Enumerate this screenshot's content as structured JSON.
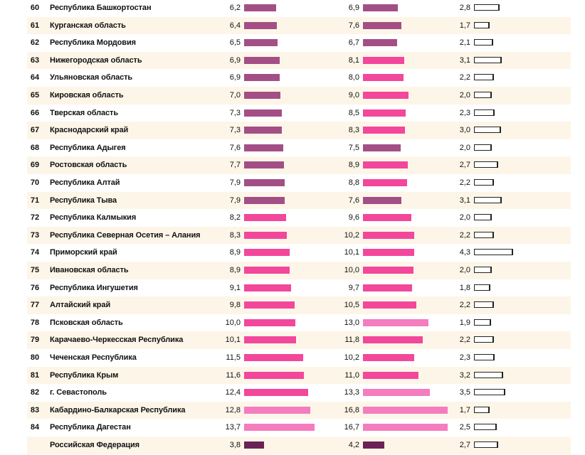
{
  "colors": {
    "stripe": "#fdf6e8",
    "low": "#a34f86",
    "mid": "#f2479b",
    "high": "#f47cbf",
    "total": "#6b2256"
  },
  "chart_data": {
    "type": "table",
    "columns": [
      "",
      "",
      "",
      "",
      ""
    ],
    "rows": [
      {
        "rank": "60",
        "region": "Республика Башкортостан",
        "v1": "6,2",
        "v2": "6,9",
        "v3": "2,8"
      },
      {
        "rank": "61",
        "region": "Курганская область",
        "v1": "6,4",
        "v2": "7,6",
        "v3": "1,7"
      },
      {
        "rank": "62",
        "region": "Республика Мордовия",
        "v1": "6,5",
        "v2": "6,7",
        "v3": "2,1"
      },
      {
        "rank": "63",
        "region": "Нижегородская область",
        "v1": "6,9",
        "v2": "8,1",
        "v3": "3,1"
      },
      {
        "rank": "64",
        "region": "Ульяновская область",
        "v1": "6,9",
        "v2": "8,0",
        "v3": "2,2"
      },
      {
        "rank": "65",
        "region": "Кировская область",
        "v1": "7,0",
        "v2": "9,0",
        "v3": "2,0"
      },
      {
        "rank": "66",
        "region": "Тверская область",
        "v1": "7,3",
        "v2": "8,5",
        "v3": "2,3"
      },
      {
        "rank": "67",
        "region": "Краснодарский край",
        "v1": "7,3",
        "v2": "8,3",
        "v3": "3,0"
      },
      {
        "rank": "68",
        "region": "Республика Адыгея",
        "v1": "7,6",
        "v2": "7,5",
        "v3": "2,0"
      },
      {
        "rank": "69",
        "region": "Ростовская область",
        "v1": "7,7",
        "v2": "8,9",
        "v3": "2,7"
      },
      {
        "rank": "70",
        "region": "Республика Алтай",
        "v1": "7,9",
        "v2": "8,8",
        "v3": "2,2"
      },
      {
        "rank": "71",
        "region": "Республика Тыва",
        "v1": "7,9",
        "v2": "7,6",
        "v3": "3,1"
      },
      {
        "rank": "72",
        "region": "Республика Калмыкия",
        "v1": "8,2",
        "v2": "9,6",
        "v3": "2,0"
      },
      {
        "rank": "73",
        "region": "Республика Северная Осетия – Алания",
        "v1": "8,3",
        "v2": "10,2",
        "v3": "2,2"
      },
      {
        "rank": "74",
        "region": "Приморский край",
        "v1": "8,9",
        "v2": "10,1",
        "v3": "4,3"
      },
      {
        "rank": "75",
        "region": "Ивановская область",
        "v1": "8,9",
        "v2": "10,0",
        "v3": "2,0"
      },
      {
        "rank": "76",
        "region": "Республика Ингушетия",
        "v1": "9,1",
        "v2": "9,7",
        "v3": "1,8"
      },
      {
        "rank": "77",
        "region": "Алтайский край",
        "v1": "9,8",
        "v2": "10,5",
        "v3": "2,2"
      },
      {
        "rank": "78",
        "region": "Псковская область",
        "v1": "10,0",
        "v2": "13,0",
        "v3": "1,9"
      },
      {
        "rank": "79",
        "region": "Карачаево-Черкесская Республика",
        "v1": "10,1",
        "v2": "11,8",
        "v3": "2,2"
      },
      {
        "rank": "80",
        "region": "Чеченская Республика",
        "v1": "11,5",
        "v2": "10,2",
        "v3": "2,3"
      },
      {
        "rank": "81",
        "region": "Республика Крым",
        "v1": "11,6",
        "v2": "11,0",
        "v3": "3,2"
      },
      {
        "rank": "82",
        "region": "г. Севастополь",
        "v1": "12,4",
        "v2": "13,3",
        "v3": "3,5"
      },
      {
        "rank": "83",
        "region": "Кабардино-Балкарская Республика",
        "v1": "12,8",
        "v2": "16,8",
        "v3": "1,7"
      },
      {
        "rank": "84",
        "region": "Республика Дагестан",
        "v1": "13,7",
        "v2": "16,7",
        "v3": "2,5"
      },
      {
        "rank": "",
        "region": "Российская Федерация",
        "v1": "3,8",
        "v2": "4,2",
        "v3": "2,7"
      }
    ]
  }
}
